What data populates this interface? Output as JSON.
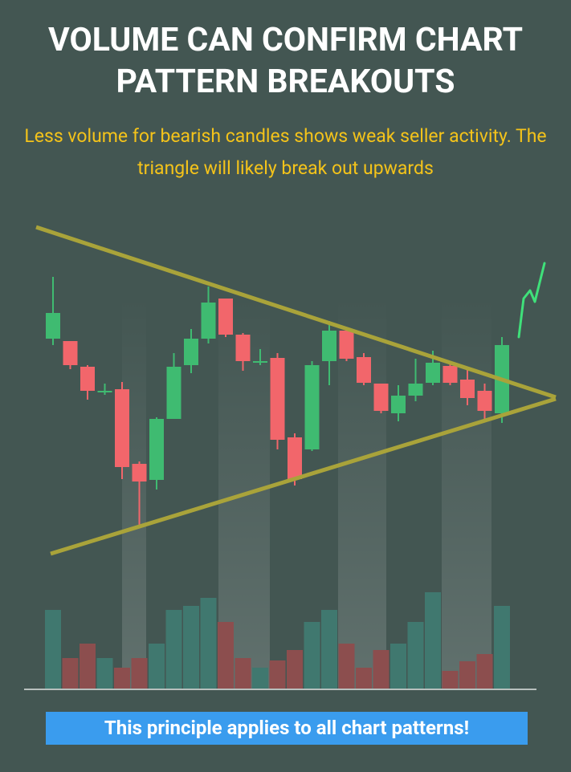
{
  "chart_data": {
    "type": "candlestick",
    "title": "VOLUME CAN CONFIRM CHART PATTERN BREAKOUTS",
    "subtitle": "Less volume for bearish candles shows weak seller activity. The triangle will likely break out upwards",
    "note": "This principle applies to all chart patterns!",
    "up_color": "#3fbb71",
    "down_color": "#f2666b",
    "volume_up_color": "#40786f",
    "volume_down_color": "#8c4e4e",
    "open": [
      378,
      375,
      343,
      313,
      315,
      222,
      202,
      278,
      345,
      378,
      428,
      383,
      350,
      354,
      255,
      240,
      350,
      388,
      355,
      322,
      285,
      307,
      323,
      344,
      327,
      313,
      285
    ],
    "close": [
      410,
      345,
      313,
      313,
      218,
      200,
      278,
      343,
      378,
      423,
      383,
      350,
      350,
      252,
      203,
      345,
      388,
      353,
      323,
      288,
      307,
      322,
      348,
      323,
      304,
      288,
      370
    ],
    "high": [
      455,
      375,
      345,
      322,
      324,
      225,
      280,
      360,
      390,
      443,
      428,
      385,
      365,
      360,
      260,
      350,
      400,
      388,
      360,
      322,
      320,
      353,
      363,
      350,
      342,
      322,
      380
    ],
    "low": [
      370,
      340,
      302,
      308,
      203,
      142,
      190,
      278,
      335,
      372,
      380,
      338,
      345,
      240,
      195,
      238,
      320,
      350,
      320,
      285,
      275,
      300,
      320,
      320,
      295,
      278,
      273
    ],
    "volume": [
      98,
      38,
      56,
      38,
      26,
      38,
      56,
      98,
      103,
      113,
      83,
      38,
      26,
      35,
      48,
      83,
      98,
      56,
      26,
      48,
      56,
      83,
      120,
      22,
      34,
      43,
      103
    ],
    "ylim": [
      100,
      540
    ],
    "volume_ylim": [
      0,
      130
    ]
  }
}
